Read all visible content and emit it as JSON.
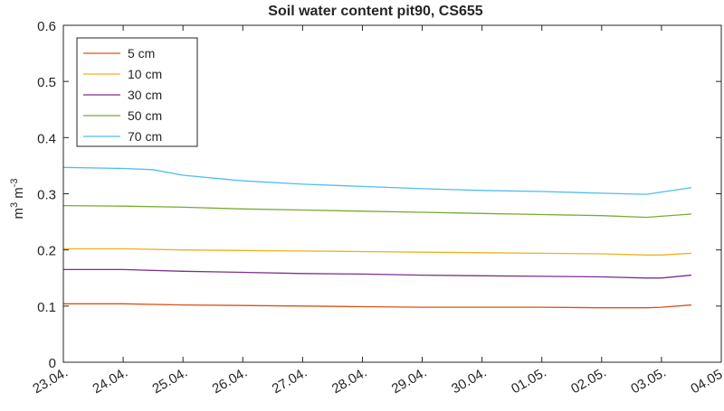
{
  "chart_data": {
    "type": "line",
    "title": "Soil water content pit90, CS655",
    "ylabel_base": "m",
    "ylabel_exp1": "3",
    "ylabel_mid": " m",
    "ylabel_exp2": "-3",
    "ylim": [
      0,
      0.6
    ],
    "yticks": [
      0,
      0.1,
      0.2,
      0.3,
      0.4,
      0.5,
      0.6
    ],
    "ytick_labels": [
      "0",
      "0.1",
      "0.2",
      "0.3",
      "0.4",
      "0.5",
      "0.6"
    ],
    "xlim": [
      "2017-04-23",
      "2017-05-04"
    ],
    "xtick_labels": [
      "23.04.",
      "24.04.",
      "25.04.",
      "26.04.",
      "27.04.",
      "28.04.",
      "29.04.",
      "30.04.",
      "01.05.",
      "02.05.",
      "03.05.",
      "04.05."
    ],
    "grid": false,
    "legend_position": "top-left",
    "series": [
      {
        "name": "5 cm",
        "color": "#D95319",
        "x": [
          "2017-04-23",
          "2017-04-24",
          "2017-04-25",
          "2017-04-26",
          "2017-04-27",
          "2017-04-28",
          "2017-04-29",
          "2017-04-30",
          "2017-05-01",
          "2017-05-02",
          "2017-05-02 18:00",
          "2017-05-03",
          "2017-05-03 12:00"
        ],
        "y": [
          0.104,
          0.104,
          0.102,
          0.101,
          0.1,
          0.099,
          0.098,
          0.098,
          0.098,
          0.097,
          0.097,
          0.098,
          0.102
        ]
      },
      {
        "name": "10 cm",
        "color": "#EDB120",
        "x": [
          "2017-04-23",
          "2017-04-24",
          "2017-04-25",
          "2017-04-26",
          "2017-04-27",
          "2017-04-28",
          "2017-04-29",
          "2017-04-30",
          "2017-05-01",
          "2017-05-02",
          "2017-05-02 18:00",
          "2017-05-03",
          "2017-05-03 12:00"
        ],
        "y": [
          0.202,
          0.202,
          0.2,
          0.199,
          0.198,
          0.197,
          0.196,
          0.195,
          0.194,
          0.193,
          0.191,
          0.191,
          0.194
        ]
      },
      {
        "name": "30 cm",
        "color": "#7E2F8E",
        "x": [
          "2017-04-23",
          "2017-04-24",
          "2017-04-25",
          "2017-04-26",
          "2017-04-27",
          "2017-04-28",
          "2017-04-29",
          "2017-04-30",
          "2017-05-01",
          "2017-05-02",
          "2017-05-02 18:00",
          "2017-05-03",
          "2017-05-03 12:00"
        ],
        "y": [
          0.165,
          0.165,
          0.162,
          0.16,
          0.158,
          0.157,
          0.155,
          0.154,
          0.153,
          0.152,
          0.15,
          0.15,
          0.155
        ]
      },
      {
        "name": "50 cm",
        "color": "#77AC30",
        "x": [
          "2017-04-23",
          "2017-04-24",
          "2017-04-25",
          "2017-04-26",
          "2017-04-27",
          "2017-04-28",
          "2017-04-29",
          "2017-04-30",
          "2017-05-01",
          "2017-05-02",
          "2017-05-02 18:00",
          "2017-05-03",
          "2017-05-03 12:00"
        ],
        "y": [
          0.279,
          0.278,
          0.276,
          0.273,
          0.271,
          0.269,
          0.267,
          0.265,
          0.263,
          0.261,
          0.258,
          0.26,
          0.264
        ]
      },
      {
        "name": "70 cm",
        "color": "#4DBEEE",
        "x": [
          "2017-04-23",
          "2017-04-24",
          "2017-04-24 12:00",
          "2017-04-25",
          "2017-04-26",
          "2017-04-27",
          "2017-04-28",
          "2017-04-29",
          "2017-04-30",
          "2017-05-01",
          "2017-05-02",
          "2017-05-02 18:00",
          "2017-05-03",
          "2017-05-03 12:00"
        ],
        "y": [
          0.347,
          0.345,
          0.343,
          0.333,
          0.323,
          0.317,
          0.313,
          0.309,
          0.306,
          0.304,
          0.301,
          0.299,
          0.303,
          0.311
        ]
      }
    ]
  }
}
